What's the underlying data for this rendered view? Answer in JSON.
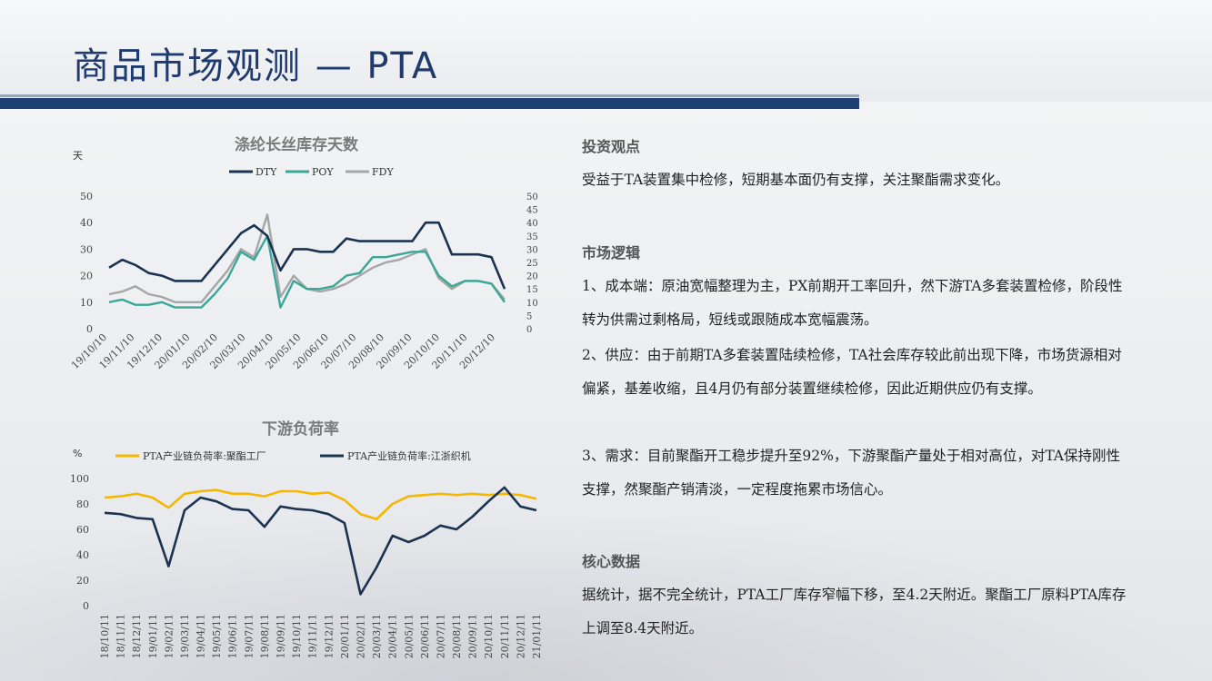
{
  "page": {
    "title": "商品市场观测 — PTA"
  },
  "chart1": {
    "title": "涤纶长丝库存天数",
    "unit": "天",
    "legend": [
      {
        "name": "DTY",
        "color": "#1b3350"
      },
      {
        "name": "POY",
        "color": "#3aa797"
      },
      {
        "name": "FDY",
        "color": "#a6a6a6"
      }
    ],
    "left_ticks": [
      "0",
      "10",
      "20",
      "30",
      "40",
      "50"
    ],
    "right_ticks": [
      "0",
      "5",
      "10",
      "15",
      "20",
      "25",
      "30",
      "35",
      "40",
      "45",
      "50"
    ],
    "x_labels": [
      "19/10/10",
      "19/11/10",
      "19/12/10",
      "20/01/10",
      "20/02/10",
      "20/03/10",
      "20/04/10",
      "20/05/10",
      "20/06/10",
      "20/07/10",
      "20/08/10",
      "20/09/10",
      "20/10/10",
      "20/11/10",
      "20/12/10"
    ]
  },
  "chart2": {
    "title": "下游负荷率",
    "unit": "%",
    "legend": [
      {
        "name": "PTA产业链负荷率:聚酯工厂",
        "color": "#f5b800"
      },
      {
        "name": "PTA产业链负荷率:江浙织机",
        "color": "#1b3350"
      }
    ],
    "y_ticks": [
      "0",
      "20",
      "40",
      "60",
      "80",
      "100"
    ],
    "x_labels": [
      "18/10/11",
      "18/11/11",
      "18/12/11",
      "19/01/11",
      "19/02/11",
      "19/03/11",
      "19/04/11",
      "19/05/11",
      "19/06/11",
      "19/07/11",
      "19/08/11",
      "19/09/11",
      "19/10/11",
      "19/11/11",
      "19/12/11",
      "20/01/11",
      "20/02/11",
      "20/03/11",
      "20/04/11",
      "20/05/11",
      "20/06/11",
      "20/07/11",
      "20/08/11",
      "20/09/11",
      "20/10/11",
      "20/11/11",
      "20/12/11",
      "21/01/11"
    ]
  },
  "chart_data": [
    {
      "type": "line",
      "title": "涤纶长丝库存天数",
      "ylabel": "天",
      "ylim": [
        0,
        50
      ],
      "y2lim": [
        0,
        50
      ],
      "x": [
        "19/10/10",
        "19/10/25",
        "19/11/10",
        "19/11/25",
        "19/12/10",
        "19/12/25",
        "20/01/10",
        "20/01/25",
        "20/02/10",
        "20/02/25",
        "20/03/10",
        "20/03/25",
        "20/04/10",
        "20/04/25",
        "20/05/10",
        "20/05/25",
        "20/06/10",
        "20/06/25",
        "20/07/10",
        "20/07/25",
        "20/08/10",
        "20/08/25",
        "20/09/10",
        "20/09/25",
        "20/10/10",
        "20/10/25",
        "20/11/10",
        "20/11/25",
        "20/12/10",
        "20/12/25",
        "21/01/05"
      ],
      "series": [
        {
          "name": "DTY",
          "values": [
            23,
            26,
            24,
            21,
            20,
            18,
            18,
            18,
            24,
            30,
            36,
            39,
            35,
            22,
            30,
            30,
            29,
            29,
            34,
            33,
            33,
            33,
            33,
            33,
            40,
            40,
            28,
            28,
            28,
            27,
            15
          ]
        },
        {
          "name": "POY",
          "values": [
            10,
            11,
            9,
            9,
            10,
            8,
            8,
            8,
            13,
            19,
            29,
            26,
            35,
            8,
            18,
            15,
            15,
            16,
            20,
            21,
            27,
            27,
            28,
            29,
            29,
            20,
            16,
            18,
            18,
            17,
            10
          ]
        },
        {
          "name": "FDY",
          "values": [
            13,
            14,
            16,
            13,
            12,
            10,
            10,
            10,
            16,
            22,
            30,
            27,
            43,
            12,
            20,
            15,
            14,
            15,
            17,
            20,
            23,
            25,
            26,
            28,
            30,
            19,
            15,
            18,
            18,
            17,
            11
          ]
        }
      ]
    },
    {
      "type": "line",
      "title": "下游负荷率",
      "ylabel": "%",
      "ylim": [
        0,
        100
      ],
      "x": [
        "18/10/11",
        "18/11/11",
        "18/12/11",
        "19/01/11",
        "19/02/11",
        "19/03/11",
        "19/04/11",
        "19/05/11",
        "19/06/11",
        "19/07/11",
        "19/08/11",
        "19/09/11",
        "19/10/11",
        "19/11/11",
        "19/12/11",
        "20/01/11",
        "20/02/11",
        "20/03/11",
        "20/04/11",
        "20/05/11",
        "20/06/11",
        "20/07/11",
        "20/08/11",
        "20/09/11",
        "20/10/11",
        "20/11/11",
        "20/12/11",
        "21/01/11"
      ],
      "series": [
        {
          "name": "PTA产业链负荷率:聚酯工厂",
          "values": [
            85,
            86,
            88,
            85,
            77,
            88,
            90,
            91,
            88,
            88,
            86,
            90,
            90,
            88,
            89,
            83,
            72,
            68,
            80,
            86,
            87,
            88,
            87,
            88,
            87,
            88,
            87,
            84
          ]
        },
        {
          "name": "PTA产业链负荷率:江浙织机",
          "values": [
            73,
            72,
            69,
            68,
            31,
            75,
            85,
            82,
            76,
            75,
            62,
            78,
            76,
            75,
            72,
            65,
            9,
            30,
            55,
            50,
            55,
            63,
            60,
            70,
            82,
            93,
            78,
            75
          ]
        }
      ]
    }
  ],
  "right": {
    "s1_title": "投资观点",
    "s1_text": "受益于TA装置集中检修，短期基本面仍有支撑，关注聚酯需求变化。",
    "s2_title": "市场逻辑",
    "s2_p1": "1、成本端：原油宽幅整理为主，PX前期开工率回升，然下游TA多套装置检修，阶段性转为供需过剩格局，短线或跟随成本宽幅震荡。",
    "s2_p2": "2、供应：由于前期TA多套装置陆续检修，TA社会库存较此前出现下降，市场货源相对偏紧，基差收缩，且4月仍有部分装置继续检修，因此近期供应仍有支撑。",
    "s2_p3": "3、需求：目前聚酯开工稳步提升至92%，下游聚酯产量处于相对高位，对TA保持刚性支撑，然聚酯产销清淡，一定程度拖累市场信心。",
    "s3_title": "核心数据",
    "s3_text": "据统计，据不完全统计，PTA工厂库存窄幅下移，至4.2天附近。聚酯工厂原料PTA库存上调至8.4天附近。"
  }
}
